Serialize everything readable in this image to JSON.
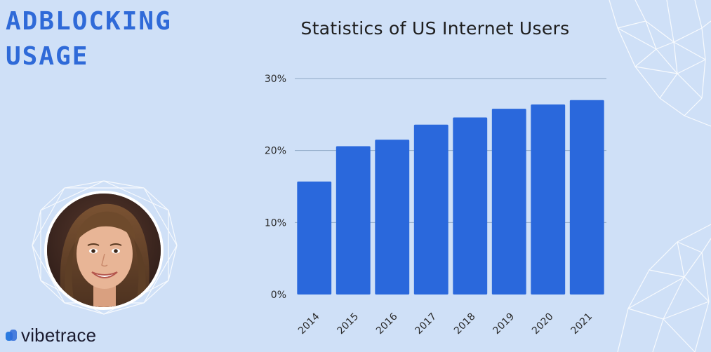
{
  "slide": {
    "title_lines": [
      "ADBLOCKING",
      "USAGE"
    ],
    "brand_color": "#2f6ad8",
    "background_color": "#cfe0f7"
  },
  "logo": {
    "text": "vibetrace",
    "icon": "vibetrace-logo-icon",
    "color": "#2b7be0"
  },
  "presenter": {
    "icon": "presenter-photo"
  },
  "chart_data": {
    "type": "bar",
    "title": "Statistics of US Internet Users",
    "categories": [
      "2014",
      "2015",
      "2016",
      "2017",
      "2018",
      "2019",
      "2020",
      "2021"
    ],
    "values": [
      15.7,
      20.6,
      21.5,
      23.6,
      24.6,
      25.8,
      26.4,
      27.0
    ],
    "ylim": [
      0,
      30
    ],
    "yticks": [
      0,
      10,
      20,
      30
    ],
    "ytick_labels": [
      "0%",
      "10%",
      "20%",
      "30%"
    ],
    "xlabel": "",
    "ylabel": "",
    "grid": true,
    "bar_color": "#2a68dc",
    "grid_color": "#8fa8c6"
  }
}
